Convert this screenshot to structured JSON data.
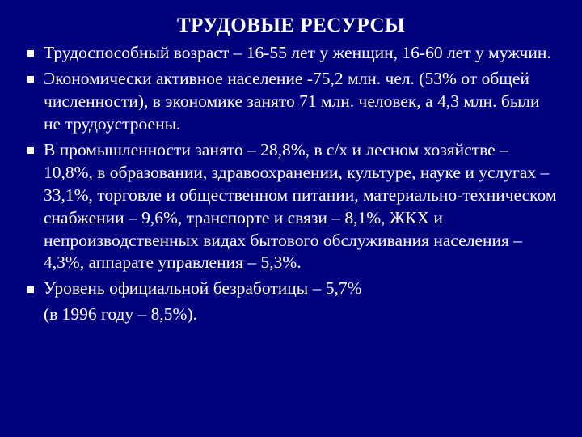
{
  "slide": {
    "background_color": "#00007c",
    "text_color": "#ffffff",
    "title_fontsize": 25,
    "body_fontsize": 21.5,
    "font_family": "Times New Roman",
    "bullet_shape": "square",
    "bullet_color": "#ffffff",
    "title": "ТРУДОВЫЕ РЕСУРСЫ",
    "bullets": [
      "Трудоспособный возраст – 16-55 лет у женщин, 16-60 лет у мужчин.",
      "Экономически активное население -75,2 млн. чел. (53% от общей численности), в экономике занято 71 млн. человек, а 4,3 млн. были не трудоустроены.",
      "В промышленности занято – 28,8%, в с/х и лесном хозяйстве – 10,8%, в образовании, здравоохранении, культуре, науке и услугах – 33,1%, торговле и общественном питании, материально-техническом снабжении – 9,6%, транспорте и связи – 8,1%, ЖКХ и непроизводственных видах бытового обслуживания населения – 4,3%, аппарате управления – 5,3%.",
      "Уровень официальной безработицы – 5,7%"
    ],
    "continuation": "(в 1996 году – 8,5%)."
  }
}
